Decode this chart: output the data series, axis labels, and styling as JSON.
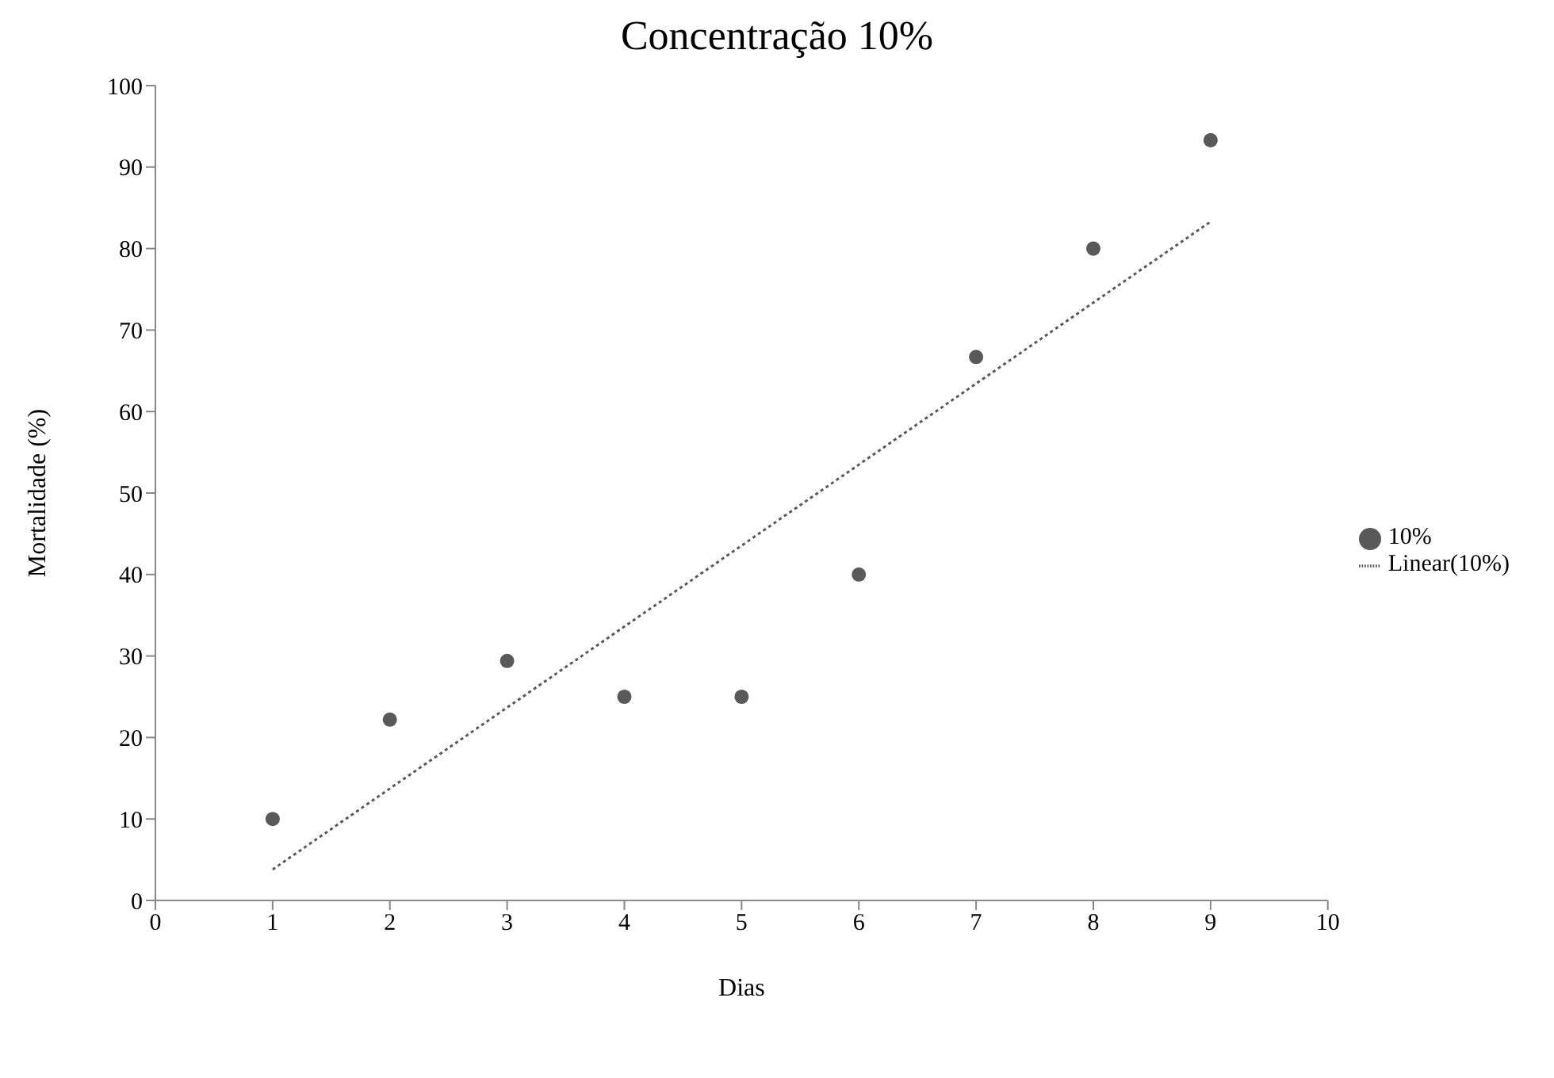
{
  "chart_data": {
    "type": "scatter",
    "title": "Concentração 10%",
    "xlabel": "Dias",
    "ylabel": "Mortalidade (%)",
    "xlim": [
      0,
      10
    ],
    "xticks": [
      0,
      1,
      2,
      3,
      4,
      5,
      6,
      7,
      8,
      9,
      10
    ],
    "ylim": [
      0,
      100
    ],
    "yticks": [
      0,
      10,
      20,
      30,
      40,
      50,
      60,
      70,
      80,
      90,
      100
    ],
    "legend": "right",
    "series": [
      {
        "name": "10%",
        "color": "#595959",
        "marker": "circle",
        "x": [
          1,
          2,
          3,
          4,
          5,
          6,
          7,
          8,
          9
        ],
        "values": [
          10,
          22.2,
          29.4,
          25,
          25,
          40,
          66.7,
          80,
          93.3
        ]
      },
      {
        "name": "Linear(10%)",
        "type": "line",
        "color": "#595959",
        "marker": "none",
        "line_style": "dotted",
        "x": [
          1,
          9
        ],
        "values": [
          3.8,
          83.3
        ]
      }
    ]
  }
}
